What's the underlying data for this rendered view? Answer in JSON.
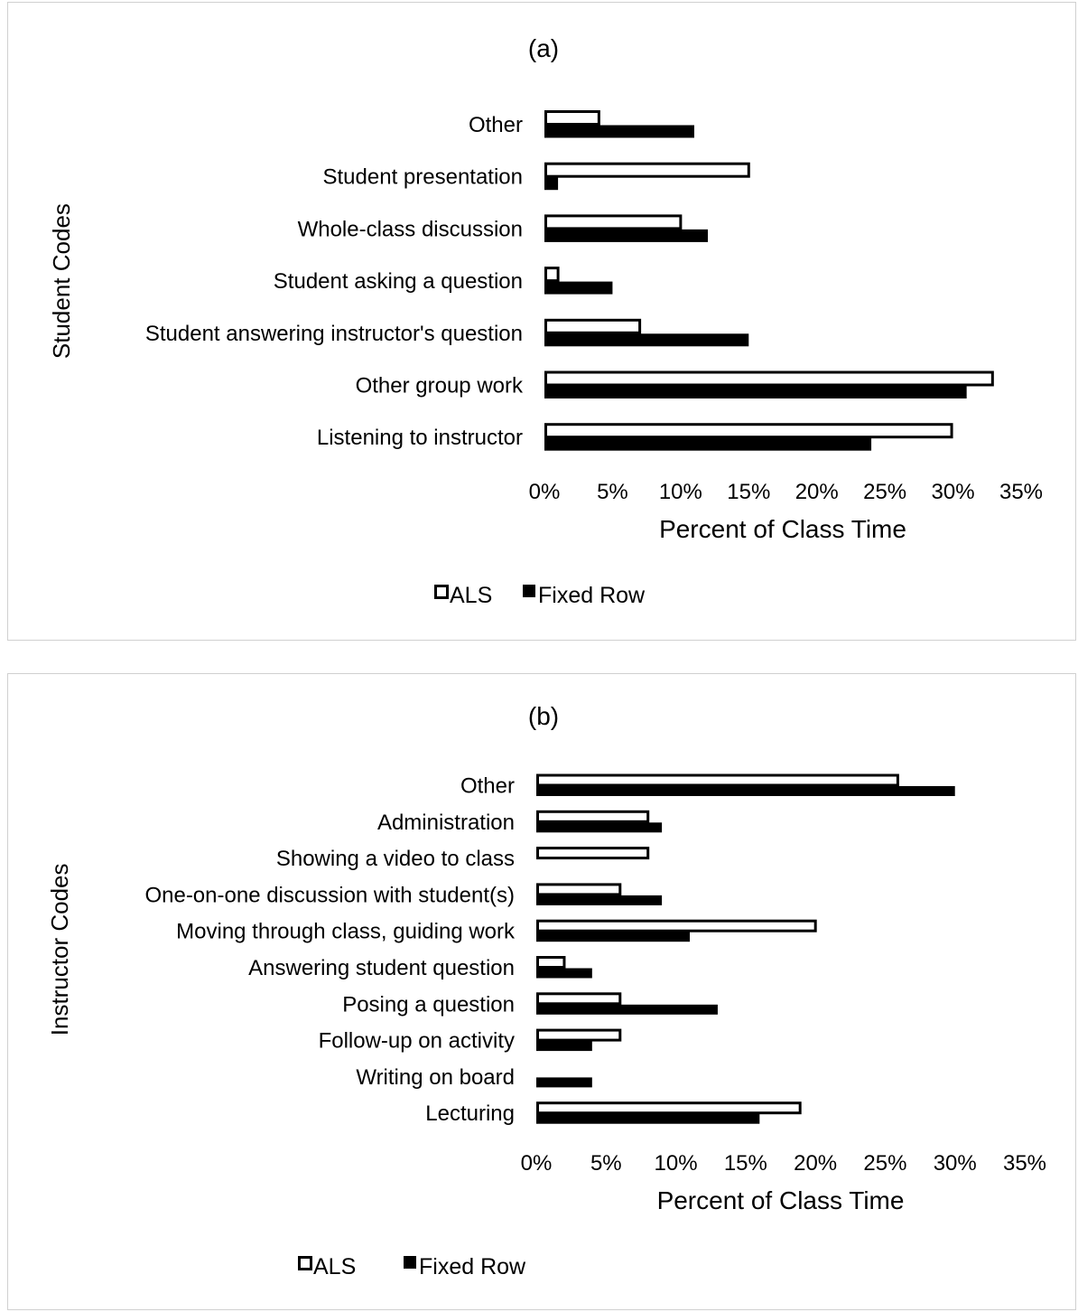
{
  "colors": {
    "als_fill": "#ffffff",
    "fixed_row_fill": "#000000",
    "bar_stroke": "#000000"
  },
  "chart_data": [
    {
      "type": "bar",
      "orientation": "horizontal",
      "title": "(a)",
      "xlabel": "Percent of Class Time",
      "ylabel": "Student Codes",
      "xlim": [
        0,
        35
      ],
      "x_ticks": [
        "0%",
        "5%",
        "10%",
        "15%",
        "20%",
        "25%",
        "30%",
        "35%"
      ],
      "grid": false,
      "legend_position": "bottom",
      "categories": [
        "Other",
        "Student presentation",
        "Whole-class discussion",
        "Student asking a question",
        "Student answering instructor's question",
        "Other group work",
        "Listening to instructor"
      ],
      "series": [
        {
          "name": "ALS",
          "values": [
            4.1,
            15.1,
            10.1,
            1.1,
            7.1,
            33.0,
            30.0
          ]
        },
        {
          "name": "Fixed Row",
          "values": [
            11.0,
            1.0,
            12.0,
            5.0,
            15.0,
            31.0,
            24.0
          ]
        }
      ]
    },
    {
      "type": "bar",
      "orientation": "horizontal",
      "title": "(b)",
      "xlabel": "Percent of Class Time",
      "ylabel": "Instructor Codes",
      "xlim": [
        0,
        35
      ],
      "x_ticks": [
        "0%",
        "5%",
        "10%",
        "15%",
        "20%",
        "25%",
        "30%",
        "35%"
      ],
      "grid": false,
      "legend_position": "bottom",
      "categories": [
        "Other",
        "Administration",
        "Showing a video to class",
        "One-on-one discussion with student(s)",
        "Moving through class, guiding work",
        "Answering student question",
        "Posing a question",
        "Follow-up on activity",
        "Writing on board",
        "Lecturing"
      ],
      "series": [
        {
          "name": "ALS",
          "values": [
            26.0,
            8.1,
            8.1,
            6.1,
            20.1,
            2.1,
            6.1,
            6.1,
            0,
            19.0
          ]
        },
        {
          "name": "Fixed Row",
          "values": [
            30.0,
            9.0,
            0,
            9.0,
            11.0,
            4.0,
            13.0,
            4.0,
            4.0,
            16.0
          ]
        }
      ]
    }
  ]
}
